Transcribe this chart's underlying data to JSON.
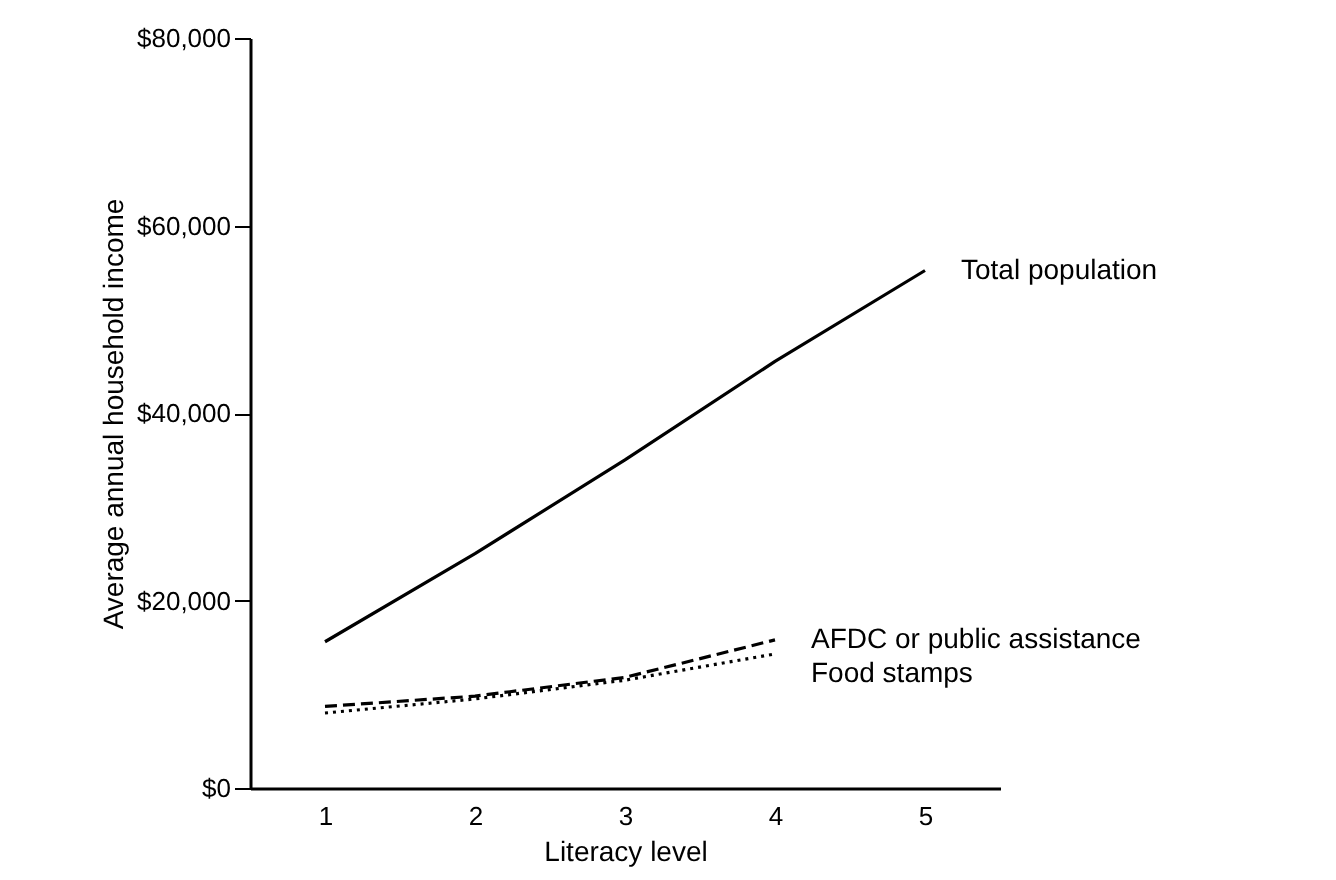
{
  "chart_data": {
    "type": "line",
    "xlabel": "Literacy level",
    "ylabel": "Average annual household income",
    "x": [
      1,
      2,
      3,
      4,
      5
    ],
    "series": [
      {
        "name": "Total population",
        "color": "#000000",
        "line_style": "solid",
        "values": [
          15600,
          25000,
          35000,
          45500,
          55200
        ]
      },
      {
        "name": "AFDC or public assistance",
        "color": "#000000",
        "line_style": "dashed",
        "values": [
          8700,
          9800,
          11800,
          15800,
          null
        ]
      },
      {
        "name": "Food stamps",
        "color": "#000000",
        "line_style": "dotted",
        "values": [
          8000,
          9500,
          11500,
          14300,
          null
        ]
      }
    ],
    "xlim": [
      0.5,
      5.5
    ],
    "xticks": [
      1,
      2,
      3,
      4,
      5
    ],
    "ylim": [
      0,
      80000
    ],
    "yticks": [
      {
        "value": 0,
        "label": "$0"
      },
      {
        "value": 20000,
        "label": "$20,000"
      },
      {
        "value": 40000,
        "label": "$40,000"
      },
      {
        "value": 60000,
        "label": "$60,000"
      },
      {
        "value": 80000,
        "label": "$80,000"
      }
    ],
    "grid": false,
    "legend": false,
    "marker": "none"
  }
}
